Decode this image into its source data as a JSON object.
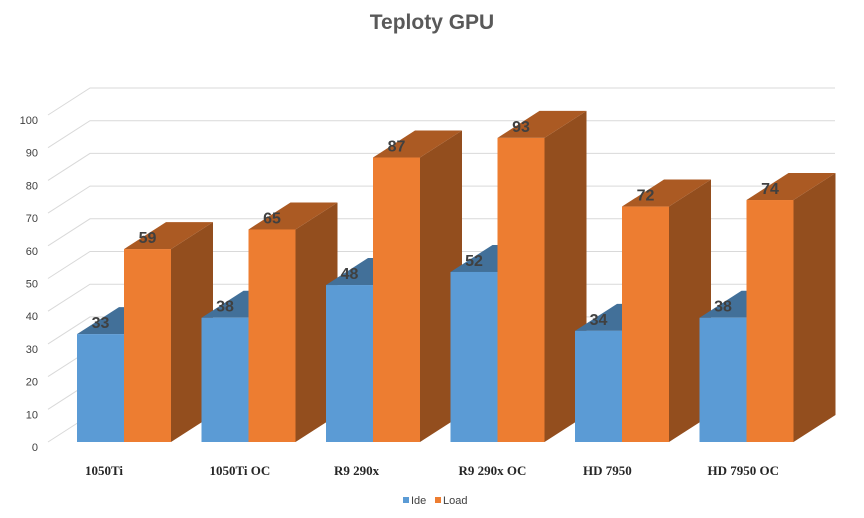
{
  "chart_data": {
    "type": "bar",
    "title": "Teploty GPU",
    "categories": [
      "1050Ti",
      "1050Ti OC",
      "R9 290x",
      "R9 290x OC",
      "HD 7950",
      "HD 7950 OC"
    ],
    "series": [
      {
        "name": "Ide",
        "values": [
          33,
          38,
          48,
          52,
          34,
          38
        ],
        "color": "#5b9bd5"
      },
      {
        "name": "Load",
        "values": [
          59,
          65,
          87,
          93,
          72,
          74
        ],
        "color": "#ed7d31"
      }
    ],
    "ylim": [
      0,
      100
    ],
    "yticks": [
      0,
      10,
      20,
      30,
      40,
      50,
      60,
      70,
      80,
      90,
      100
    ],
    "grid": true,
    "legend_position": "bottom"
  }
}
